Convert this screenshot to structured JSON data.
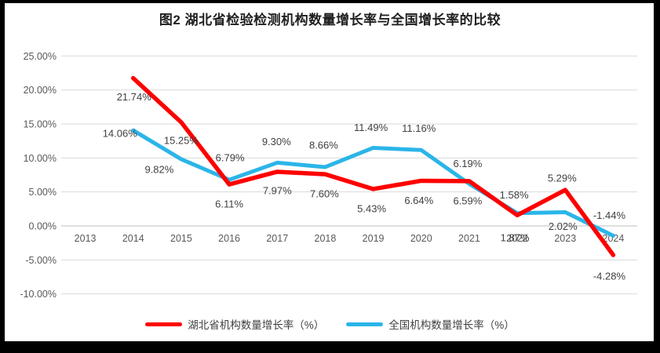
{
  "title": "图2 湖北省检验检测机构数量增长率与全国增长率的比较",
  "colors": {
    "hubei_line": "#FE0000",
    "national_line": "#2BB5E8",
    "gridline": "#D9D9D9",
    "zero_axis": "#BFBFBF",
    "axis_text": "#595959",
    "data_label_text": "#404040",
    "frame": "#000000",
    "background": "#FFFFFF"
  },
  "chart_data": {
    "type": "line",
    "title": "图2 湖北省检验检测机构数量增长率与全国增长率的比较",
    "categories": [
      "2013",
      "2014",
      "2015",
      "2016",
      "2017",
      "2018",
      "2019",
      "2020",
      "2021",
      "2022",
      "2023",
      "2024"
    ],
    "y_ticks": [
      "25.00%",
      "20.00%",
      "15.00%",
      "10.00%",
      "5.00%",
      "0.00%",
      "-5.00%",
      "-10.00%"
    ],
    "y_max": 25,
    "y_min": -10,
    "y_step": 5,
    "grid": true,
    "legend_position": "bottom",
    "series": [
      {
        "name": "湖北省机构数量增长率（%）",
        "color": "#FE0000",
        "values": [
          null,
          21.74,
          15.25,
          6.11,
          7.97,
          7.6,
          5.43,
          6.64,
          6.59,
          1.58,
          5.29,
          -4.28
        ],
        "labels": [
          "",
          "21.74%",
          "15.25%",
          "6.11%",
          "7.97%",
          "7.60%",
          "5.43%",
          "6.64%",
          "6.59%",
          "1.58%",
          "5.29%",
          "-4.28%"
        ],
        "label_offsets": [
          [
            0,
            0
          ],
          [
            1,
            24
          ],
          [
            0,
            23
          ],
          [
            0,
            25
          ],
          [
            0,
            24
          ],
          [
            -1,
            25
          ],
          [
            -2,
            25
          ],
          [
            -3,
            25
          ],
          [
            -2,
            25
          ],
          [
            -4,
            -26
          ],
          [
            -4,
            -15
          ],
          [
            -5,
            27
          ]
        ]
      },
      {
        "name": "全国机构数量增长率（%）",
        "color": "#2BB5E8",
        "values": [
          null,
          14.06,
          9.82,
          6.79,
          9.3,
          8.66,
          11.49,
          11.16,
          6.19,
          1.87,
          2.02,
          -1.44
        ],
        "labels": [
          "",
          "14.06%",
          "9.82%",
          "6.79%",
          "9.30%",
          "8.66%",
          "11.49%",
          "11.16%",
          "6.19%",
          "1.87%",
          "2.02%",
          "-1.44%"
        ],
        "label_offsets": [
          [
            0,
            0
          ],
          [
            -17,
            4
          ],
          [
            -28,
            13
          ],
          [
            1,
            -28
          ],
          [
            -1,
            -27
          ],
          [
            -2,
            -28
          ],
          [
            -3,
            -26
          ],
          [
            -3,
            -28
          ],
          [
            -2,
            -26
          ],
          [
            -3,
            31
          ],
          [
            -3,
            18
          ],
          [
            -5,
            -26
          ]
        ]
      }
    ]
  }
}
